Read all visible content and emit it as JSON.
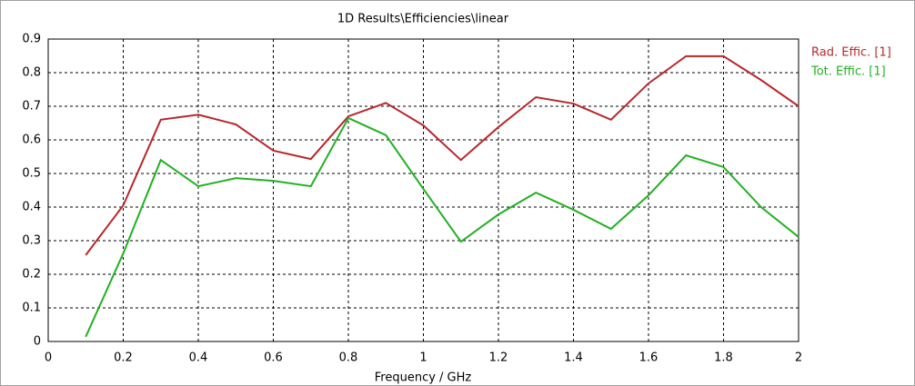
{
  "chart_data": {
    "type": "line",
    "title": "1D Results\\Efficiencies\\linear",
    "x_label": "Frequency / GHz",
    "x": [
      0.1,
      0.2,
      0.3,
      0.4,
      0.5,
      0.6,
      0.7,
      0.8,
      0.9,
      1.0,
      1.1,
      1.2,
      1.3,
      1.4,
      1.5,
      1.6,
      1.7,
      1.8,
      1.9,
      2.0
    ],
    "series": [
      {
        "name": "Rad. Effic. [1]",
        "color": "#b8272c",
        "values": [
          0.257,
          0.405,
          0.66,
          0.675,
          0.646,
          0.568,
          0.543,
          0.67,
          0.71,
          0.643,
          0.54,
          0.638,
          0.727,
          0.708,
          0.66,
          0.768,
          0.849,
          0.849,
          0.778,
          0.7
        ]
      },
      {
        "name": "Tot. Effic. [1]",
        "color": "#22b022",
        "values": [
          0.014,
          0.262,
          0.54,
          0.462,
          0.486,
          0.478,
          0.462,
          0.665,
          0.614,
          0.454,
          0.297,
          0.378,
          0.443,
          0.392,
          0.335,
          0.435,
          0.554,
          0.519,
          0.4,
          0.311
        ]
      }
    ],
    "xlim": [
      0,
      2
    ],
    "xticks": [
      0,
      0.2,
      0.4,
      0.6,
      0.8,
      1,
      1.2,
      1.4,
      1.6,
      1.8,
      2
    ],
    "ylim": [
      0,
      0.9
    ],
    "yticks": [
      0,
      0.1,
      0.2,
      0.3,
      0.4,
      0.5,
      0.6,
      0.7,
      0.8,
      0.9
    ],
    "grid": true,
    "legend": "right"
  }
}
